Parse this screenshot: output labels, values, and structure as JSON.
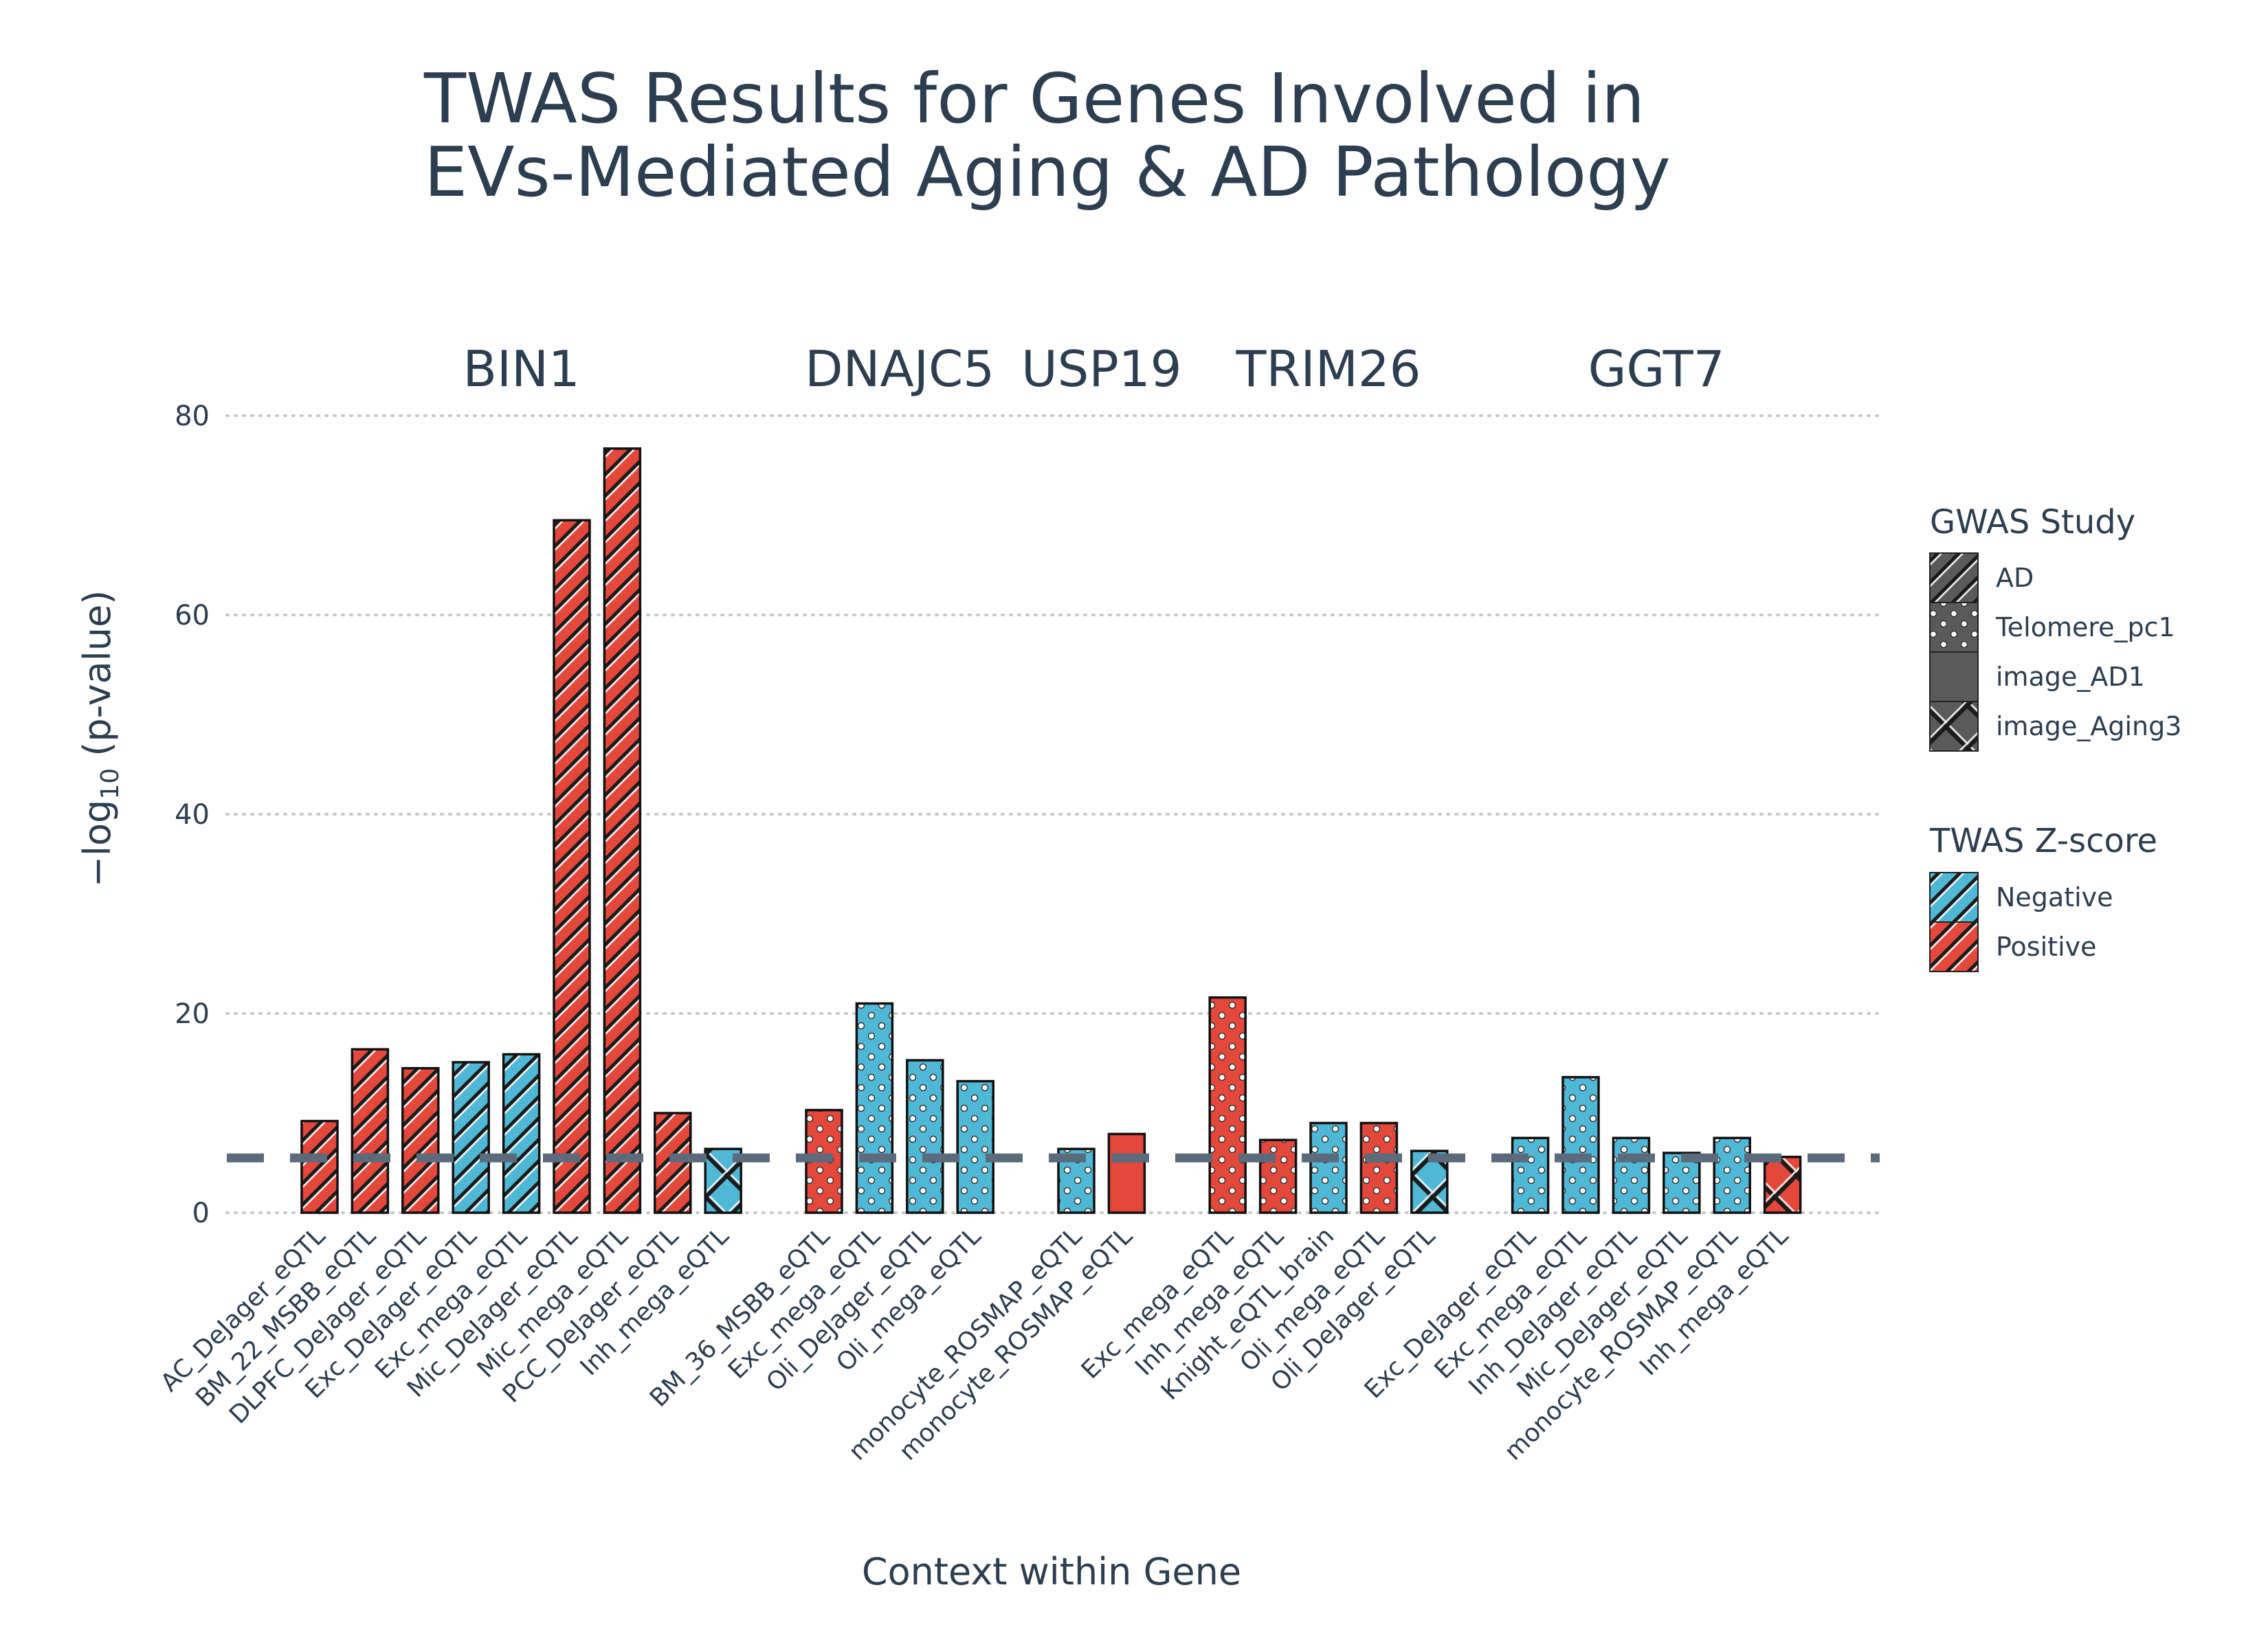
{
  "chart_data": {
    "type": "bar",
    "title_lines": [
      "TWAS Results for Genes Involved in",
      "EVs-Mediated Aging & AD Pathology"
    ],
    "xlabel": "Context within Gene",
    "ylabel_prefix": "−log",
    "ylabel_sub": "10",
    "ylabel_suffix": " (p-value)",
    "ylim": [
      0,
      80
    ],
    "yticks": [
      0,
      20,
      40,
      60,
      80
    ],
    "ytick_labels": [
      "0",
      "20",
      "40",
      "60",
      "80"
    ],
    "grid": "horizontal dotted",
    "threshold_line": 5.5,
    "colors": {
      "Negative": "#4fb8d6",
      "Positive": "#e3483b",
      "legend_fill": "#5a5a5a"
    },
    "groups": [
      {
        "gene": "BIN1",
        "bars": [
          {
            "context": "AC_DeJager_eQTL",
            "value": 9.2,
            "zscore": "Positive",
            "study": "AD"
          },
          {
            "context": "BM_22_MSBB_eQTL",
            "value": 16.4,
            "zscore": "Positive",
            "study": "AD"
          },
          {
            "context": "DLPFC_DeJager_eQTL",
            "value": 14.5,
            "zscore": "Positive",
            "study": "AD"
          },
          {
            "context": "Exc_DeJager_eQTL",
            "value": 15.1,
            "zscore": "Negative",
            "study": "AD"
          },
          {
            "context": "Exc_mega_eQTL",
            "value": 15.9,
            "zscore": "Negative",
            "study": "AD"
          },
          {
            "context": "Mic_DeJager_eQTL",
            "value": 69.5,
            "zscore": "Positive",
            "study": "AD"
          },
          {
            "context": "Mic_mega_eQTL",
            "value": 76.7,
            "zscore": "Positive",
            "study": "AD"
          },
          {
            "context": "PCC_DeJager_eQTL",
            "value": 10.0,
            "zscore": "Positive",
            "study": "AD"
          },
          {
            "context": "Inh_mega_eQTL",
            "value": 6.4,
            "zscore": "Negative",
            "study": "image_Aging3"
          }
        ]
      },
      {
        "gene": "DNAJC5",
        "bars": [
          {
            "context": "BM_36_MSBB_eQTL",
            "value": 10.3,
            "zscore": "Positive",
            "study": "Telomere_pc1"
          },
          {
            "context": "Exc_mega_eQTL",
            "value": 21.0,
            "zscore": "Negative",
            "study": "Telomere_pc1"
          },
          {
            "context": "Oli_DeJager_eQTL",
            "value": 15.3,
            "zscore": "Negative",
            "study": "Telomere_pc1"
          },
          {
            "context": "Oli_mega_eQTL",
            "value": 13.2,
            "zscore": "Negative",
            "study": "Telomere_pc1"
          }
        ]
      },
      {
        "gene": "USP19",
        "bars": [
          {
            "context": "monocyte_ROSMAP_eQTL",
            "value": 6.4,
            "zscore": "Negative",
            "study": "Telomere_pc1"
          },
          {
            "context": "monocyte_ROSMAP_eQTL",
            "value": 7.9,
            "zscore": "Positive",
            "study": "image_AD1"
          }
        ]
      },
      {
        "gene": "TRIM26",
        "bars": [
          {
            "context": "Exc_mega_eQTL",
            "value": 21.6,
            "zscore": "Positive",
            "study": "Telomere_pc1"
          },
          {
            "context": "Inh_mega_eQTL",
            "value": 7.3,
            "zscore": "Positive",
            "study": "Telomere_pc1"
          },
          {
            "context": "Knight_eQTL_brain",
            "value": 9.0,
            "zscore": "Negative",
            "study": "Telomere_pc1"
          },
          {
            "context": "Oli_mega_eQTL",
            "value": 9.0,
            "zscore": "Positive",
            "study": "Telomere_pc1"
          },
          {
            "context": "Oli_DeJager_eQTL",
            "value": 6.2,
            "zscore": "Negative",
            "study": "image_Aging3"
          }
        ]
      },
      {
        "gene": "GGT7",
        "bars": [
          {
            "context": "Exc_DeJager_eQTL",
            "value": 7.5,
            "zscore": "Negative",
            "study": "Telomere_pc1"
          },
          {
            "context": "Exc_mega_eQTL",
            "value": 13.6,
            "zscore": "Negative",
            "study": "Telomere_pc1"
          },
          {
            "context": "Inh_DeJager_eQTL",
            "value": 7.5,
            "zscore": "Negative",
            "study": "Telomere_pc1"
          },
          {
            "context": "Mic_DeJager_eQTL",
            "value": 6.0,
            "zscore": "Negative",
            "study": "Telomere_pc1"
          },
          {
            "context": "monocyte_ROSMAP_eQTL",
            "value": 7.5,
            "zscore": "Negative",
            "study": "Telomere_pc1"
          },
          {
            "context": "Inh_mega_eQTL",
            "value": 5.6,
            "zscore": "Positive",
            "study": "image_Aging3"
          }
        ]
      }
    ],
    "legend": {
      "placement": "right",
      "study": {
        "title": "GWAS Study",
        "items": [
          "AD",
          "Telomere_pc1",
          "image_AD1",
          "image_Aging3"
        ]
      },
      "zscore": {
        "title": "TWAS Z-score",
        "items": [
          "Negative",
          "Positive"
        ]
      }
    }
  }
}
